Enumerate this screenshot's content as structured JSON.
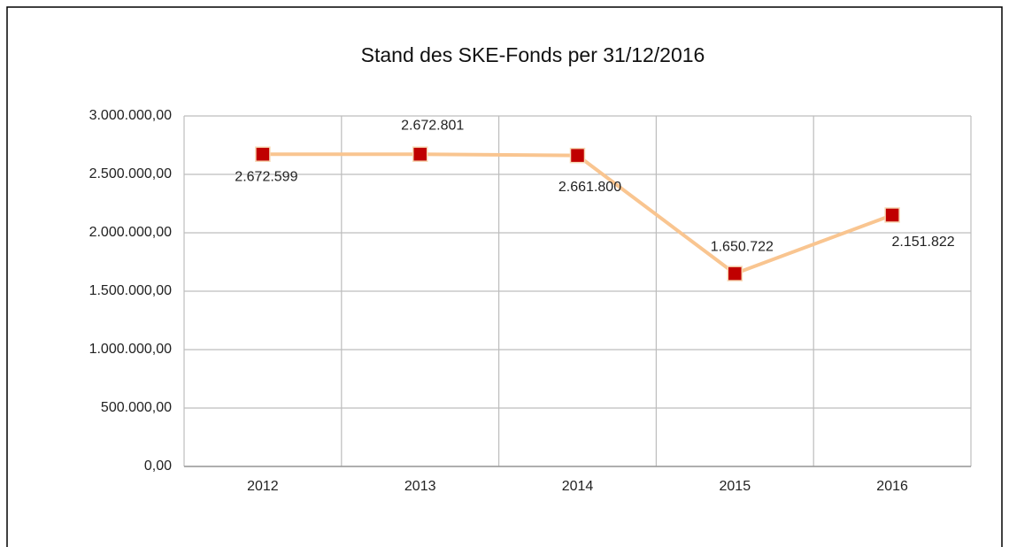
{
  "chart_data": {
    "type": "line",
    "title": "Stand des SKE-Fonds per 31/12/2016",
    "categories": [
      "2012",
      "2013",
      "2014",
      "2015",
      "2016"
    ],
    "series": [
      {
        "name": "Stand des SKE-Fonds",
        "color": "#f9c590",
        "marker_color": "#c00000",
        "values": [
          2672599,
          2672801,
          2661800,
          1650722,
          2151822
        ],
        "value_labels": [
          "2.672.599",
          "2.672.801",
          "2.661.800",
          "1.650.722",
          "2.151.822"
        ]
      }
    ],
    "ylim": [
      0,
      3000000
    ],
    "yticks": [
      {
        "value": 0,
        "label": "0,00"
      },
      {
        "value": 500000,
        "label": "500.000,00"
      },
      {
        "value": 1000000,
        "label": "1.000.000,00"
      },
      {
        "value": 1500000,
        "label": "1.500.000,00"
      },
      {
        "value": 2000000,
        "label": "2.000.000,00"
      },
      {
        "value": 2500000,
        "label": "2.500.000,00"
      },
      {
        "value": 3000000,
        "label": "3.000.000,00"
      }
    ],
    "grid": true
  }
}
